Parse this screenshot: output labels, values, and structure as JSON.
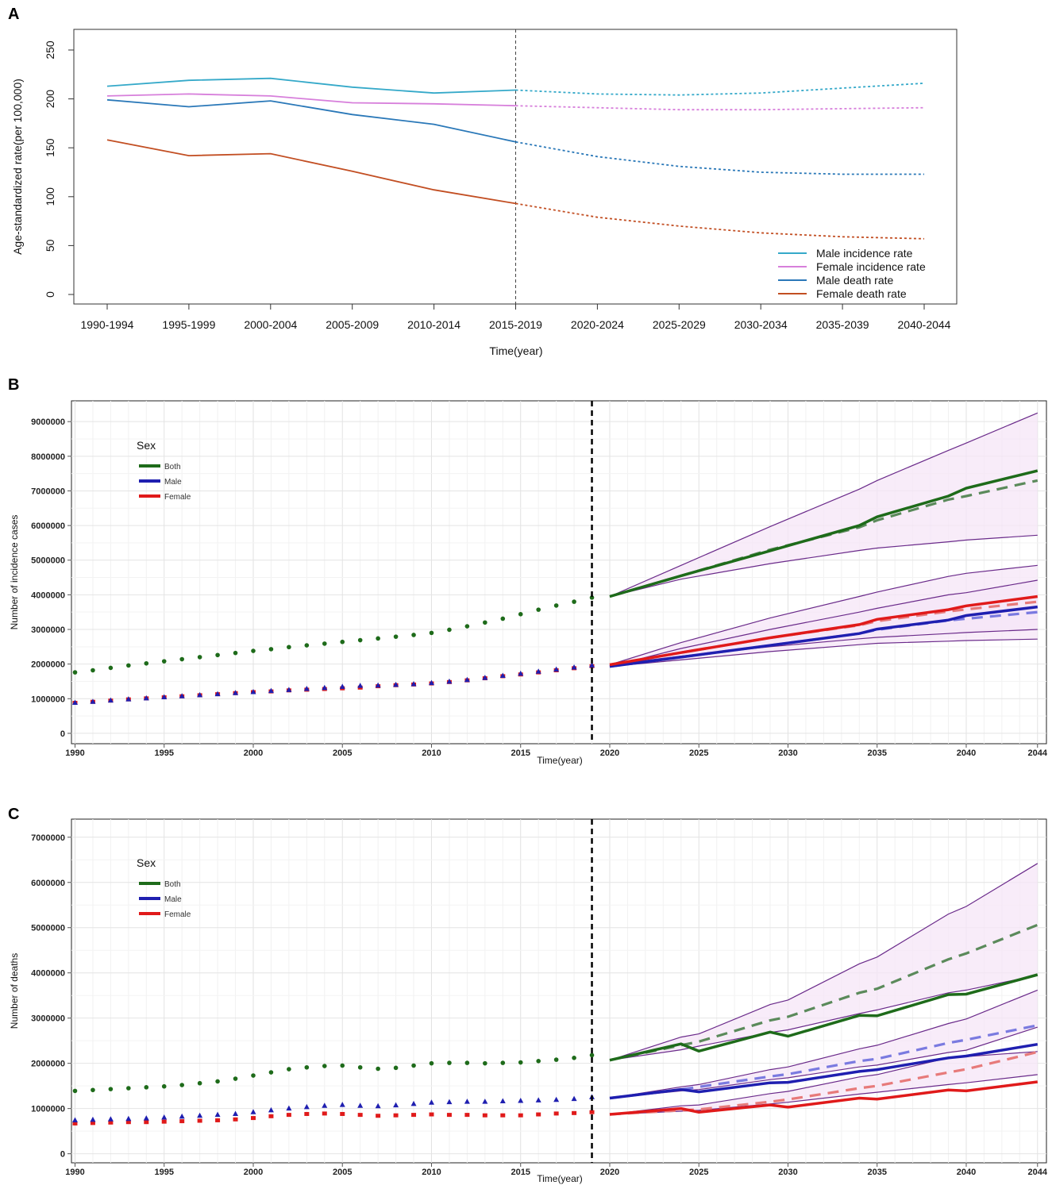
{
  "chart_data": [
    {
      "panel": "A",
      "type": "line",
      "xlabel": "Time(year)",
      "ylabel": "Age-standardized rate(per 100,000)",
      "categories": [
        "1990-1994",
        "1995-1999",
        "2000-2004",
        "2005-2009",
        "2010-2014",
        "2015-2019",
        "2020-2024",
        "2025-2029",
        "2030-2034",
        "2035-2039",
        "2040-2044"
      ],
      "yticks": [
        0,
        50,
        100,
        150,
        200,
        250
      ],
      "ylim": [
        -5,
        270
      ],
      "observed_until_index": 5,
      "divider_label": "2015-2019",
      "legend_position": "bottom-right",
      "series": [
        {
          "name": "Male incidence rate",
          "color": "#35a9c9",
          "values": [
            213,
            219,
            221,
            212,
            206,
            209,
            205,
            204,
            206,
            211,
            216
          ]
        },
        {
          "name": "Female incidence rate",
          "color": "#d77fdb",
          "values": [
            203,
            205,
            203,
            196,
            195,
            193,
            191,
            189,
            189,
            190,
            191
          ]
        },
        {
          "name": "Male death rate",
          "color": "#2a78b8",
          "values": [
            199,
            192,
            198,
            184,
            174,
            156,
            141,
            131,
            125,
            123,
            123
          ]
        },
        {
          "name": "Female death rate",
          "color": "#c24e22",
          "values": [
            158,
            142,
            144,
            126,
            107,
            93,
            79,
            70,
            63,
            59,
            57
          ]
        }
      ]
    },
    {
      "panel": "B",
      "type": "line",
      "xlabel": "Time(year)",
      "ylabel": "Number of incidence cases",
      "xticks": [
        1990,
        1995,
        2000,
        2005,
        2010,
        2015,
        2020,
        2025,
        2030,
        2035,
        2040,
        2044
      ],
      "yticks": [
        0,
        1000000,
        2000000,
        3000000,
        4000000,
        5000000,
        6000000,
        7000000,
        8000000,
        9000000
      ],
      "ytick_labels": [
        "0",
        "1000000",
        "2000000",
        "3000000",
        "4000000",
        "5000000",
        "6000000",
        "7000000",
        "8000000",
        "9000000"
      ],
      "ylim": [
        -300000,
        9600000
      ],
      "xlim": [
        1989.8,
        2044.5
      ],
      "observed_until": 2019,
      "legend_title": "Sex",
      "legend_position": "top-left",
      "legend": [
        {
          "name": "Both",
          "color": "#1e6b1a"
        },
        {
          "name": "Male",
          "color": "#1f1fb0"
        },
        {
          "name": "Female",
          "color": "#e01a1a"
        }
      ],
      "observed": {
        "years": [
          1990,
          1991,
          1992,
          1993,
          1994,
          1995,
          1996,
          1997,
          1998,
          1999,
          2000,
          2001,
          2002,
          2003,
          2004,
          2005,
          2006,
          2007,
          2008,
          2009,
          2010,
          2011,
          2012,
          2013,
          2014,
          2015,
          2016,
          2017,
          2018,
          2019
        ],
        "Both": [
          1760000,
          1820000,
          1890000,
          1960000,
          2020000,
          2080000,
          2140000,
          2200000,
          2260000,
          2320000,
          2380000,
          2430000,
          2490000,
          2540000,
          2590000,
          2640000,
          2690000,
          2740000,
          2790000,
          2840000,
          2900000,
          2990000,
          3090000,
          3200000,
          3310000,
          3440000,
          3570000,
          3690000,
          3800000,
          3920000
        ],
        "Male": [
          880000,
          910000,
          945000,
          980000,
          1010000,
          1040000,
          1070000,
          1100000,
          1130000,
          1160000,
          1190000,
          1220000,
          1250000,
          1280000,
          1310000,
          1340000,
          1370000,
          1380000,
          1400000,
          1420000,
          1450000,
          1490000,
          1540000,
          1600000,
          1660000,
          1720000,
          1780000,
          1840000,
          1900000,
          1960000
        ],
        "Female": [
          880000,
          910000,
          945000,
          980000,
          1010000,
          1040000,
          1070000,
          1100000,
          1130000,
          1160000,
          1190000,
          1210000,
          1240000,
          1260000,
          1280000,
          1300000,
          1320000,
          1360000,
          1390000,
          1410000,
          1440000,
          1480000,
          1530000,
          1590000,
          1650000,
          1700000,
          1760000,
          1820000,
          1880000,
          1940000
        ]
      },
      "projection_years": [
        2020,
        2024,
        2029,
        2034,
        2035,
        2039,
        2040,
        2044
      ],
      "projection": {
        "Both": {
          "mean": [
            3950000,
            4550000,
            5270000,
            6000000,
            6250000,
            6850000,
            7080000,
            7580000
          ],
          "trend": [
            3950000,
            4550000,
            5300000,
            5950000,
            6150000,
            6750000,
            6850000,
            7300000
          ],
          "upper": [
            3950000,
            4850000,
            5970000,
            7050000,
            7300000,
            8170000,
            8380000,
            9250000
          ],
          "lower": [
            3950000,
            4450000,
            4900000,
            5280000,
            5350000,
            5530000,
            5580000,
            5720000
          ]
        },
        "Male": {
          "mean": [
            1930000,
            2200000,
            2540000,
            2880000,
            3010000,
            3270000,
            3400000,
            3650000
          ],
          "trend": [
            1930000,
            2200000,
            2540000,
            2880000,
            2990000,
            3260000,
            3310000,
            3500000
          ],
          "upper": [
            1930000,
            2450000,
            3000000,
            3500000,
            3610000,
            4000000,
            4060000,
            4420000
          ],
          "lower": [
            1930000,
            2120000,
            2360000,
            2560000,
            2600000,
            2660000,
            2680000,
            2720000
          ]
        },
        "Female": {
          "mean": [
            1980000,
            2330000,
            2760000,
            3140000,
            3290000,
            3570000,
            3680000,
            3950000
          ],
          "trend": [
            1980000,
            2330000,
            2760000,
            3120000,
            3240000,
            3520000,
            3580000,
            3800000
          ],
          "upper": [
            1980000,
            2620000,
            3330000,
            3950000,
            4080000,
            4530000,
            4620000,
            4850000
          ],
          "lower": [
            1980000,
            2230000,
            2500000,
            2730000,
            2770000,
            2880000,
            2910000,
            3000000
          ]
        }
      }
    },
    {
      "panel": "C",
      "type": "line",
      "xlabel": "Time(year)",
      "ylabel": "Number of deaths",
      "xticks": [
        1990,
        1995,
        2000,
        2005,
        2010,
        2015,
        2020,
        2025,
        2030,
        2035,
        2040,
        2044
      ],
      "yticks": [
        0,
        1000000,
        2000000,
        3000000,
        4000000,
        5000000,
        6000000,
        7000000
      ],
      "ytick_labels": [
        "0",
        "1000000",
        "2000000",
        "3000000",
        "4000000",
        "5000000",
        "6000000",
        "7000000"
      ],
      "ylim": [
        -200000,
        7400000
      ],
      "xlim": [
        1989.8,
        2044.5
      ],
      "observed_until": 2019,
      "legend_title": "Sex",
      "legend_position": "top-left",
      "legend": [
        {
          "name": "Both",
          "color": "#1e6b1a"
        },
        {
          "name": "Male",
          "color": "#1f1fb0"
        },
        {
          "name": "Female",
          "color": "#e01a1a"
        }
      ],
      "observed": {
        "years": [
          1990,
          1991,
          1992,
          1993,
          1994,
          1995,
          1996,
          1997,
          1998,
          1999,
          2000,
          2001,
          2002,
          2003,
          2004,
          2005,
          2006,
          2007,
          2008,
          2009,
          2010,
          2011,
          2012,
          2013,
          2014,
          2015,
          2016,
          2017,
          2018,
          2019
        ],
        "Both": [
          1390000,
          1410000,
          1430000,
          1450000,
          1470000,
          1490000,
          1520000,
          1560000,
          1600000,
          1660000,
          1730000,
          1800000,
          1870000,
          1910000,
          1940000,
          1950000,
          1910000,
          1880000,
          1900000,
          1950000,
          2000000,
          2010000,
          2010000,
          2000000,
          2010000,
          2020000,
          2050000,
          2080000,
          2120000,
          2180000
        ],
        "Male": [
          740000,
          750000,
          760000,
          770000,
          780000,
          800000,
          820000,
          840000,
          860000,
          880000,
          920000,
          960000,
          1000000,
          1030000,
          1060000,
          1080000,
          1060000,
          1050000,
          1070000,
          1100000,
          1130000,
          1140000,
          1150000,
          1150000,
          1160000,
          1170000,
          1180000,
          1190000,
          1210000,
          1250000
        ],
        "Female": [
          670000,
          680000,
          690000,
          700000,
          700000,
          710000,
          720000,
          730000,
          740000,
          760000,
          790000,
          830000,
          860000,
          880000,
          890000,
          880000,
          860000,
          840000,
          850000,
          860000,
          870000,
          860000,
          860000,
          850000,
          850000,
          850000,
          870000,
          890000,
          900000,
          920000
        ]
      },
      "projection_years": [
        2020,
        2024,
        2025,
        2029,
        2030,
        2034,
        2035,
        2039,
        2040,
        2044
      ],
      "projection": {
        "Both": {
          "mean": [
            2070000,
            2430000,
            2270000,
            2690000,
            2600000,
            3060000,
            3050000,
            3520000,
            3530000,
            3960000
          ],
          "trend": [
            2070000,
            2400000,
            2480000,
            2950000,
            3030000,
            3560000,
            3650000,
            4300000,
            4430000,
            5060000
          ],
          "upper": [
            2070000,
            2580000,
            2650000,
            3300000,
            3400000,
            4200000,
            4350000,
            5300000,
            5470000,
            6420000
          ],
          "lower": [
            2070000,
            2300000,
            2380000,
            2680000,
            2740000,
            3100000,
            3180000,
            3560000,
            3620000,
            3950000
          ]
        },
        "Male": {
          "mean": [
            1230000,
            1420000,
            1370000,
            1570000,
            1580000,
            1820000,
            1860000,
            2120000,
            2160000,
            2420000
          ],
          "trend": [
            1230000,
            1420000,
            1480000,
            1710000,
            1760000,
            2050000,
            2100000,
            2450000,
            2520000,
            2840000
          ],
          "upper": [
            1230000,
            1480000,
            1530000,
            1860000,
            1920000,
            2320000,
            2400000,
            2880000,
            2980000,
            3620000
          ],
          "lower": [
            1230000,
            1390000,
            1420000,
            1640000,
            1680000,
            1920000,
            1960000,
            2240000,
            2290000,
            2800000
          ]
        },
        "Female": {
          "mean": [
            870000,
            1000000,
            920000,
            1080000,
            1030000,
            1230000,
            1210000,
            1410000,
            1390000,
            1590000
          ],
          "trend": [
            870000,
            960000,
            980000,
            1150000,
            1200000,
            1450000,
            1500000,
            1800000,
            1870000,
            2250000
          ],
          "upper": [
            870000,
            1060000,
            1080000,
            1330000,
            1380000,
            1700000,
            1750000,
            2120000,
            2150000,
            2260000
          ],
          "lower": [
            870000,
            940000,
            960000,
            1100000,
            1140000,
            1320000,
            1360000,
            1530000,
            1570000,
            1750000
          ]
        }
      }
    }
  ]
}
